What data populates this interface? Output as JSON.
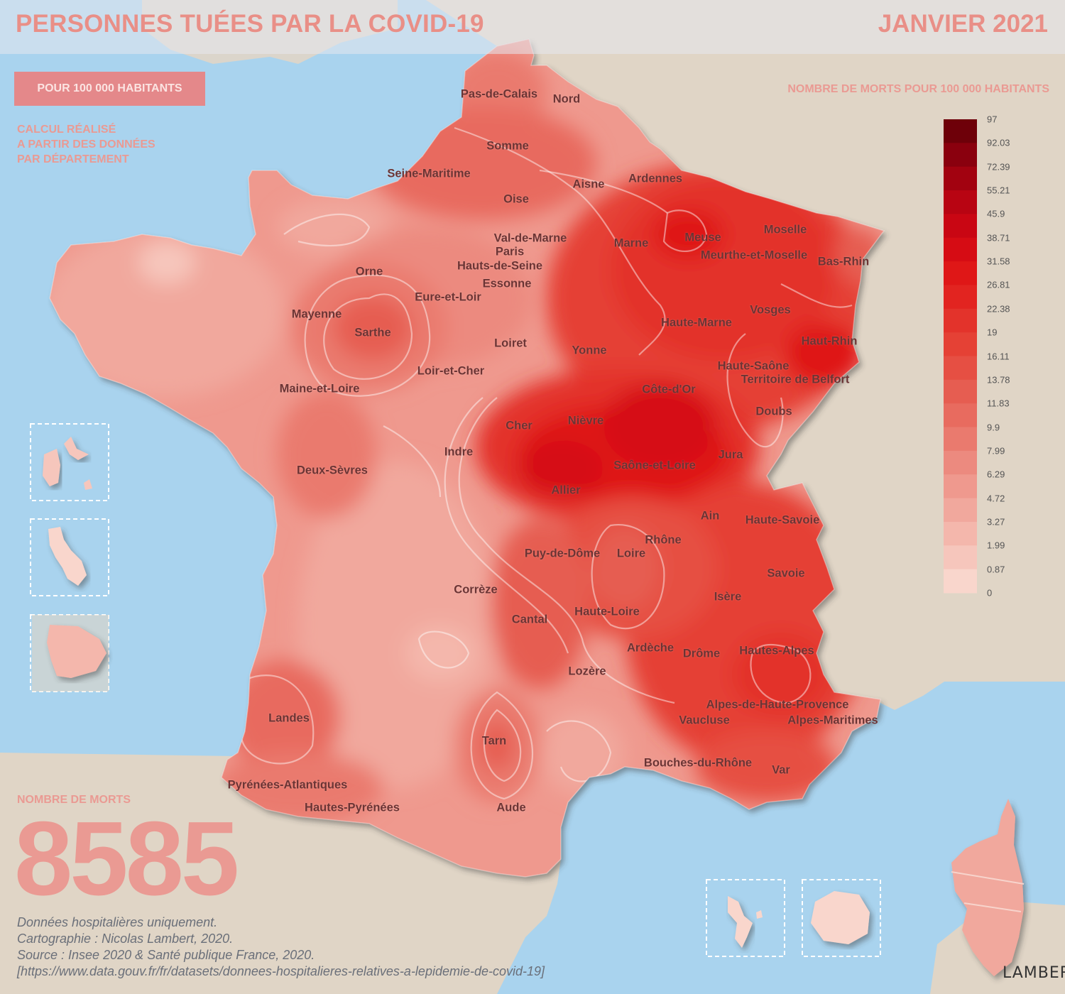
{
  "header": {
    "title": "PERSONNES TUÉES PAR LA COVID-19",
    "date": "JANVIER 2021"
  },
  "badge": "POUR 100 000 HABITANTS",
  "calculation_note": [
    "CALCUL RÉALISÉ",
    "A PARTIR DES DONNÉES",
    "PAR DÉPARTEMENT"
  ],
  "legend": {
    "title": "NOMBRE DE MORTS POUR 100 000 HABITANTS",
    "breaks": [
      "97",
      "92.03",
      "72.39",
      "55.21",
      "45.9",
      "38.71",
      "31.58",
      "26.81",
      "22.38",
      "19",
      "16.11",
      "13.78",
      "11.83",
      "9.9",
      "7.99",
      "6.29",
      "4.72",
      "3.27",
      "1.99",
      "0.87",
      "0"
    ],
    "colors": [
      "#6e0009",
      "#8a000e",
      "#a20210",
      "#b80412",
      "#c90613",
      "#d60c14",
      "#df1717",
      "#e22420",
      "#e3332b",
      "#e54135",
      "#e64f43",
      "#e65d51",
      "#e86b5f",
      "#ea7a6e",
      "#ec8a7f",
      "#ef998e",
      "#f1a89d",
      "#f4b7ac",
      "#f6c6bc",
      "#f9d6cc"
    ]
  },
  "totals": {
    "label": "NOMBRE DE MORTS",
    "value": "8585"
  },
  "notes": [
    "Données hospitalières uniquement.",
    "Cartographie : Nicolas Lambert, 2020.",
    "Source : Insee 2020 & Santé publique France, 2020.",
    "[https://www.data.gouv.fr/fr/datasets/donnees-hospitalieres-relatives-a-lepidemie-de-covid-19]"
  ],
  "signature": "LAMBERT",
  "departments": [
    {
      "id": "pas-de-calais",
      "name": "Pas-de-Calais"
    },
    {
      "id": "nord",
      "name": "Nord"
    },
    {
      "id": "somme",
      "name": "Somme"
    },
    {
      "id": "seine-maritime",
      "name": "Seine-Maritime"
    },
    {
      "id": "oise",
      "name": "Oise"
    },
    {
      "id": "aisne",
      "name": "Aisne"
    },
    {
      "id": "ardennes",
      "name": "Ardennes"
    },
    {
      "id": "moselle",
      "name": "Moselle"
    },
    {
      "id": "meuse",
      "name": "Meuse"
    },
    {
      "id": "meurthe-et-moselle",
      "name": "Meurthe-et-Moselle"
    },
    {
      "id": "bas-rhin",
      "name": "Bas-Rhin"
    },
    {
      "id": "marne",
      "name": "Marne"
    },
    {
      "id": "val-de-marne",
      "name": "Val-de-Marne"
    },
    {
      "id": "paris",
      "name": "Paris"
    },
    {
      "id": "hauts-de-seine",
      "name": "Hauts-de-Seine"
    },
    {
      "id": "essonne",
      "name": "Essonne"
    },
    {
      "id": "orne",
      "name": "Orne"
    },
    {
      "id": "eure-et-loir",
      "name": "Eure-et-Loir"
    },
    {
      "id": "mayenne",
      "name": "Mayenne"
    },
    {
      "id": "sarthe",
      "name": "Sarthe"
    },
    {
      "id": "vosges",
      "name": "Vosges"
    },
    {
      "id": "haute-marne",
      "name": "Haute-Marne"
    },
    {
      "id": "haut-rhin",
      "name": "Haut-Rhin"
    },
    {
      "id": "loiret",
      "name": "Loiret"
    },
    {
      "id": "yonne",
      "name": "Yonne"
    },
    {
      "id": "loir-et-cher",
      "name": "Loir-et-Cher"
    },
    {
      "id": "haute-saone",
      "name": "Haute-Saône"
    },
    {
      "id": "territoire-de-belfort",
      "name": "Territoire de Belfort"
    },
    {
      "id": "maine-et-loire",
      "name": "Maine-et-Loire"
    },
    {
      "id": "cote-d-or",
      "name": "Côte-d'Or"
    },
    {
      "id": "doubs",
      "name": "Doubs"
    },
    {
      "id": "cher",
      "name": "Cher"
    },
    {
      "id": "nievre",
      "name": "Nièvre"
    },
    {
      "id": "indre",
      "name": "Indre"
    },
    {
      "id": "jura",
      "name": "Jura"
    },
    {
      "id": "saone-et-loire",
      "name": "Saône-et-Loire"
    },
    {
      "id": "deux-sevres",
      "name": "Deux-Sèvres"
    },
    {
      "id": "allier",
      "name": "Allier"
    },
    {
      "id": "ain",
      "name": "Ain"
    },
    {
      "id": "haute-savoie",
      "name": "Haute-Savoie"
    },
    {
      "id": "rhone",
      "name": "Rhône"
    },
    {
      "id": "puy-de-dome",
      "name": "Puy-de-Dôme"
    },
    {
      "id": "loire",
      "name": "Loire"
    },
    {
      "id": "savoie",
      "name": "Savoie"
    },
    {
      "id": "correze",
      "name": "Corrèze"
    },
    {
      "id": "isere",
      "name": "Isère"
    },
    {
      "id": "haute-loire",
      "name": "Haute-Loire"
    },
    {
      "id": "cantal",
      "name": "Cantal"
    },
    {
      "id": "ardeche",
      "name": "Ardèche"
    },
    {
      "id": "drome",
      "name": "Drôme"
    },
    {
      "id": "hautes-alpes",
      "name": "Hautes-Alpes"
    },
    {
      "id": "lozere",
      "name": "Lozère"
    },
    {
      "id": "alpes-de-haute-provence",
      "name": "Alpes-de-Haute-Provence"
    },
    {
      "id": "landes",
      "name": "Landes"
    },
    {
      "id": "vaucluse",
      "name": "Vaucluse"
    },
    {
      "id": "alpes-maritimes",
      "name": "Alpes-Maritimes"
    },
    {
      "id": "tarn",
      "name": "Tarn"
    },
    {
      "id": "bouches-du-rhone",
      "name": "Bouches-du-Rhône"
    },
    {
      "id": "var",
      "name": "Var"
    },
    {
      "id": "pyrenees-atlantiques",
      "name": "Pyrénées-Atlantiques"
    },
    {
      "id": "hautes-pyrenees",
      "name": "Hautes-Pyrénées"
    },
    {
      "id": "aude",
      "name": "Aude"
    }
  ]
}
